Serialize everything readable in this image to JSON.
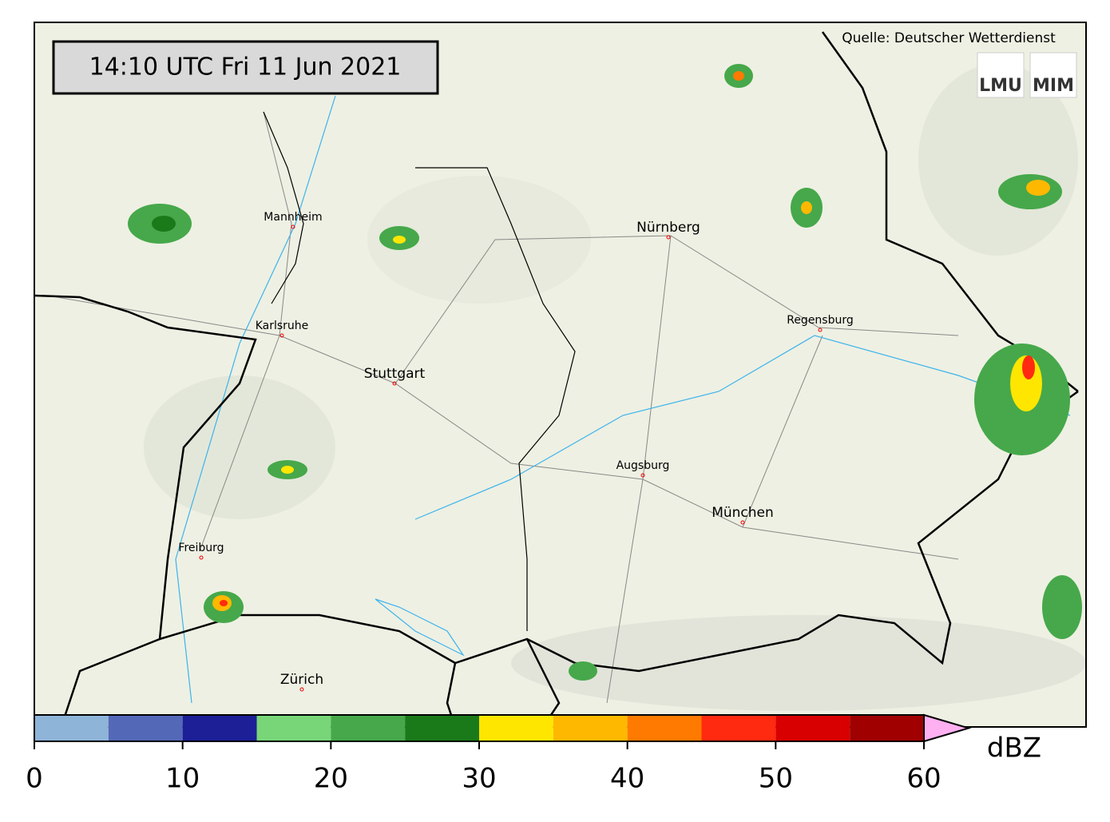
{
  "timestamp": "14:10 UTC  Fri 11 Jun 2021",
  "source": "Quelle: Deutscher Wetterdienst",
  "logos": [
    "LMU",
    "MIM"
  ],
  "cities": [
    "Mannheim",
    "Nürnberg",
    "Karlsruhe",
    "Regensburg",
    "Stuttgart",
    "Augsburg",
    "München",
    "Freiburg",
    "Zürich"
  ],
  "colorbar": {
    "bins": [
      0,
      5,
      10,
      15,
      20,
      25,
      30,
      35,
      40,
      45,
      50,
      55,
      60
    ],
    "colors": [
      "#8eb4d8",
      "#5468b8",
      "#1c1f96",
      "#78d678",
      "#46a84a",
      "#1a7a1a",
      "#ffe600",
      "#ffb800",
      "#ff7a00",
      "#ff2a10",
      "#d80000",
      "#a00000"
    ],
    "extend_color": "#ffb0f0",
    "ticks": [
      0,
      10,
      20,
      30,
      40,
      50,
      60
    ],
    "unit": "dBZ"
  }
}
